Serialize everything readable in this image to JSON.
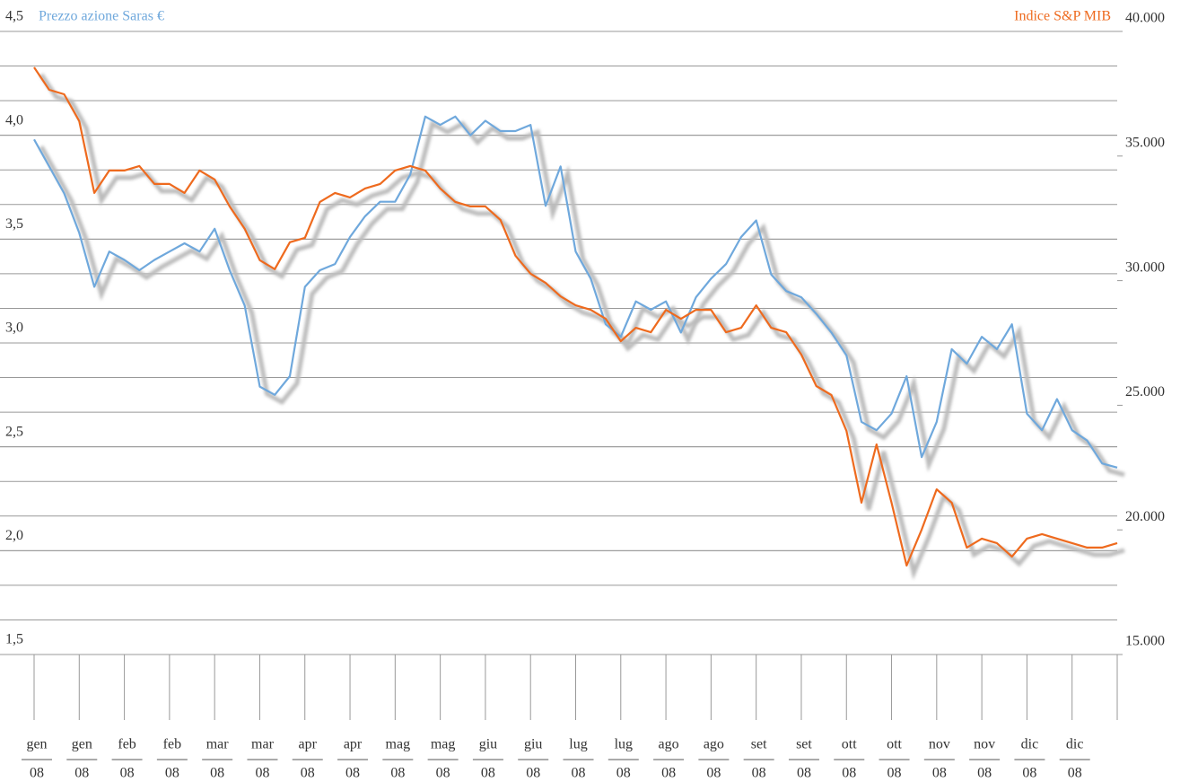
{
  "chart_data": {
    "type": "line",
    "categories": [
      [
        "gen",
        "08"
      ],
      null,
      null,
      [
        "gen",
        "08"
      ],
      null,
      null,
      [
        "feb",
        "08"
      ],
      null,
      null,
      [
        "feb",
        "08"
      ],
      null,
      null,
      [
        "mar",
        "08"
      ],
      null,
      null,
      [
        "mar",
        "08"
      ],
      null,
      null,
      [
        "apr",
        "08"
      ],
      null,
      null,
      [
        "apr",
        "08"
      ],
      null,
      null,
      [
        "mag",
        "08"
      ],
      null,
      null,
      [
        "mag",
        "08"
      ],
      null,
      null,
      [
        "giu",
        "08"
      ],
      null,
      null,
      [
        "giu",
        "08"
      ],
      null,
      null,
      [
        "lug",
        "08"
      ],
      null,
      null,
      [
        "lug",
        "08"
      ],
      null,
      null,
      [
        "ago",
        "08"
      ],
      null,
      null,
      [
        "ago",
        "08"
      ],
      null,
      null,
      [
        "set",
        "08"
      ],
      null,
      null,
      [
        "set",
        "08"
      ],
      null,
      null,
      [
        "ott",
        "08"
      ],
      null,
      null,
      [
        "ott",
        "08"
      ],
      null,
      null,
      [
        "nov",
        "08"
      ],
      null,
      null,
      [
        "nov",
        "08"
      ],
      null,
      null,
      [
        "dic",
        "08"
      ],
      null,
      null,
      [
        "dic",
        "08"
      ],
      null,
      null,
      null
    ],
    "series": [
      {
        "name": "Prezzo azione Saras €",
        "color": "#6fa8dc",
        "axis": "y",
        "values": [
          3.98,
          3.85,
          3.72,
          3.53,
          3.27,
          3.44,
          3.4,
          3.35,
          3.4,
          3.44,
          3.48,
          3.44,
          3.55,
          3.35,
          3.18,
          2.79,
          2.75,
          2.84,
          3.27,
          3.35,
          3.38,
          3.51,
          3.61,
          3.68,
          3.68,
          3.81,
          4.09,
          4.05,
          4.09,
          4.0,
          4.07,
          4.02,
          4.02,
          4.05,
          3.66,
          3.85,
          3.44,
          3.31,
          3.09,
          3.03,
          3.2,
          3.16,
          3.2,
          3.05,
          3.22,
          3.31,
          3.38,
          3.51,
          3.59,
          3.33,
          3.25,
          3.22,
          3.14,
          3.05,
          2.94,
          2.62,
          2.58,
          2.66,
          2.84,
          2.45,
          2.62,
          2.97,
          2.9,
          3.03,
          2.97,
          3.09,
          2.66,
          2.58,
          2.73,
          2.58,
          2.53,
          2.42,
          2.4
        ]
      },
      {
        "name": "Indice S&P MIB",
        "color": "#ee6a1e",
        "axis": "y2",
        "values": [
          38560,
          37660,
          37480,
          36400,
          33520,
          34420,
          34420,
          34600,
          33880,
          33880,
          33520,
          34420,
          34060,
          32980,
          32080,
          30820,
          30460,
          31540,
          31720,
          33160,
          33520,
          33340,
          33700,
          33880,
          34420,
          34600,
          34420,
          33700,
          33160,
          32980,
          32980,
          32440,
          31000,
          30280,
          29910,
          29370,
          29010,
          28830,
          28470,
          27570,
          28110,
          27930,
          28830,
          28470,
          28830,
          28830,
          27930,
          28110,
          29010,
          28110,
          27930,
          27030,
          25770,
          25410,
          23970,
          21090,
          23430,
          21090,
          18570,
          20010,
          21630,
          21090,
          19290,
          19650,
          19470,
          18930,
          19650,
          19830,
          19650,
          19470,
          19290,
          19290,
          19470
        ]
      }
    ],
    "ylim": [
      1.5,
      4.5
    ],
    "yticks": [
      {
        "value": 1.5,
        "label": "1,5"
      },
      {
        "value": 2.0,
        "label": "2,0"
      },
      {
        "value": 2.5,
        "label": "2,5"
      },
      {
        "value": 3.0,
        "label": "3,0"
      },
      {
        "value": 3.5,
        "label": "3,5"
      },
      {
        "value": 4.0,
        "label": "4,0"
      },
      {
        "value": 4.5,
        "label": "4,5"
      }
    ],
    "y2lim": [
      15000,
      40000
    ],
    "y2ticks": [
      {
        "value": 15000,
        "label": "15.000"
      },
      {
        "value": 20000,
        "label": "20.000"
      },
      {
        "value": 25000,
        "label": "25.000"
      },
      {
        "value": 30000,
        "label": "30.000"
      },
      {
        "value": 35000,
        "label": "35.000"
      },
      {
        "value": 40000,
        "label": "40.000"
      }
    ],
    "grid": true
  }
}
